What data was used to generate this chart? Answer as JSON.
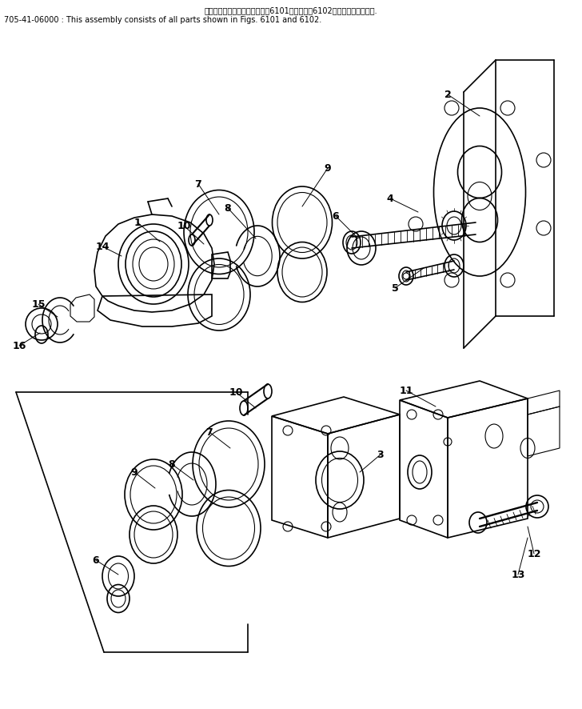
{
  "title_line1": "このアセンブリの構成部品は第6101図および第6102図の部品を含みます.",
  "title_line2": "705-41-06000 : This assembly consists of all parts shown in Figs. 6101 and 6102.",
  "bg_color": "#ffffff",
  "line_color": "#000000",
  "text_color": "#000000",
  "title_fontsize": 7.0,
  "label_fontsize": 9,
  "figsize": [
    7.28,
    8.86
  ],
  "dpi": 100
}
